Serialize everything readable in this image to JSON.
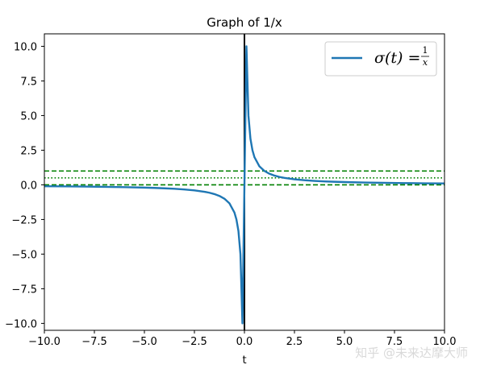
{
  "chart_data": {
    "type": "line",
    "title": "Graph of 1/x",
    "xlabel": "t",
    "ylabel": "",
    "xlim": [
      -10,
      10
    ],
    "ylim": [
      -10.5,
      10.9
    ],
    "x_ticks": [
      -10,
      -7.5,
      -5,
      -2.5,
      0,
      2.5,
      5,
      7.5,
      10
    ],
    "x_tick_labels": [
      "−10.0",
      "−7.5",
      "−5.0",
      "−2.5",
      "0.0",
      "2.5",
      "5.0",
      "7.5",
      "10.0"
    ],
    "y_ticks": [
      10,
      7.5,
      5,
      2.5,
      0,
      -2.5,
      -5,
      -7.5,
      -10
    ],
    "y_tick_labels": [
      "10.0",
      "7.5",
      "5.0",
      "2.5",
      "0.0",
      "−2.5",
      "−5.0",
      "−7.5",
      "−10.0"
    ],
    "grid": false,
    "legend_position": "top-right",
    "series": [
      {
        "name": "σ(t) = 1/x",
        "color": "#1f77b4",
        "x": [
          -10,
          -9,
          -8,
          -7,
          -6,
          -5,
          -4.5,
          -4,
          -3.5,
          -3,
          -2.5,
          -2,
          -1.75,
          -1.5,
          -1.25,
          -1,
          -0.75,
          -0.5,
          -0.4,
          -0.3,
          -0.2,
          -0.1,
          0.1,
          0.2,
          0.3,
          0.4,
          0.5,
          0.75,
          1,
          1.25,
          1.5,
          1.75,
          2,
          2.5,
          3,
          3.5,
          4,
          4.5,
          5,
          6,
          7,
          8,
          9,
          10
        ],
        "y": [
          -0.1,
          -0.111,
          -0.125,
          -0.143,
          -0.167,
          -0.2,
          -0.222,
          -0.25,
          -0.286,
          -0.333,
          -0.4,
          -0.5,
          -0.571,
          -0.667,
          -0.8,
          -1,
          -1.333,
          -2,
          -2.5,
          -3.333,
          -5,
          -10,
          10,
          5,
          3.333,
          2.5,
          2,
          1.333,
          1,
          0.8,
          0.667,
          0.571,
          0.5,
          0.4,
          0.333,
          0.286,
          0.25,
          0.222,
          0.2,
          0.167,
          0.143,
          0.125,
          0.111,
          0.1
        ]
      }
    ],
    "reference_lines": [
      {
        "orientation": "horizontal",
        "value": 1,
        "color": "#008000",
        "style": "dashed"
      },
      {
        "orientation": "horizontal",
        "value": 0.5,
        "color": "#008000",
        "style": "dotted"
      },
      {
        "orientation": "horizontal",
        "value": 0,
        "color": "#008000",
        "style": "dashed"
      },
      {
        "orientation": "vertical",
        "value": 0,
        "color": "#000000",
        "style": "solid"
      }
    ]
  },
  "watermark": "知乎 @未来达摩大师"
}
